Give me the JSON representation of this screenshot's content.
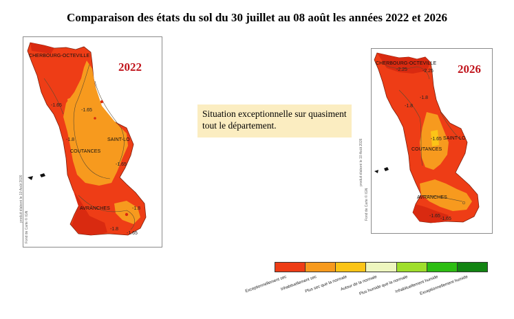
{
  "title": "Comparaison des états du sol du 30 juillet au 08 août les années 2022 et 2026",
  "maps": [
    {
      "year": "2022",
      "places": {
        "north": "CHERBOURG-OCTEVILLE",
        "east": "SAINT-LO",
        "center": "COUTANCES",
        "south": "AVRANCHES"
      },
      "isolines": [
        "-1.65",
        "-1.65",
        "-1.8",
        "-1.65",
        "-1.8",
        "-1.8",
        "-1.65"
      ],
      "credits": [
        "produit élaboré le 10 Août 2026",
        "Fond de Carte © IGN"
      ]
    },
    {
      "year": "2026",
      "places": {
        "north": "CHERBOURG-OCTEVILLE",
        "east": "SAINT-LO",
        "center": "COUTANCES",
        "south": "AVRANCHES"
      },
      "isolines": [
        "-2.25",
        "-2.25",
        "-1.8",
        "-1.65",
        "-1.8",
        "-1.65",
        "-1.65"
      ],
      "credits": [
        "produit élaboré le 10 Août 2026",
        "Fond de Carte © IGN"
      ]
    }
  ],
  "note": "Situation exceptionnelle sur quasiment tout le département.",
  "legend": [
    {
      "label": "Exceptionnellement sec",
      "color": "#ee3d16"
    },
    {
      "label": "Inhabituellement sec",
      "color": "#f79a1e"
    },
    {
      "label": "Plus sec que la normale",
      "color": "#fbc417"
    },
    {
      "label": "Autour de la normale",
      "color": "#eef6bf"
    },
    {
      "label": "Plus humide que la normale",
      "color": "#9fde2c"
    },
    {
      "label": "Inhabituellement humide",
      "color": "#2dbd13"
    },
    {
      "label": "Exceptionnellement humide",
      "color": "#128412"
    }
  ],
  "colors": {
    "exceptional_dry": "#ee3d16",
    "deep_red": "#d92a10",
    "unusual_dry": "#f79a1e",
    "year_label": "#c0141c",
    "note_background": "#fbedc1"
  }
}
